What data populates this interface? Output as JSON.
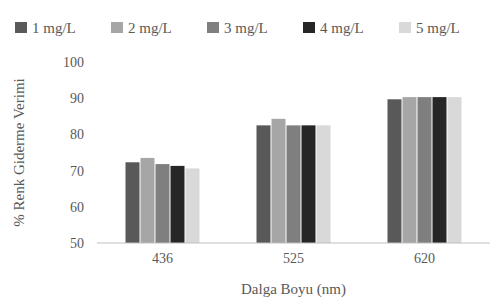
{
  "chart_data": {
    "type": "bar",
    "x_label": "Dalga Boyu (nm)",
    "y_label": "% Renk Giderme Verimi",
    "categories": [
      "436",
      "525",
      "620"
    ],
    "series": [
      {
        "name": "1 mg/L",
        "color": "#595959",
        "values": [
          72.3,
          82.5,
          89.7
        ]
      },
      {
        "name": "2 mg/L",
        "color": "#a6a6a6",
        "values": [
          73.5,
          84.3,
          90.3
        ]
      },
      {
        "name": "3 mg/L",
        "color": "#7f7f7f",
        "values": [
          71.8,
          82.5,
          90.3
        ]
      },
      {
        "name": "4 mg/L",
        "color": "#262626",
        "values": [
          71.3,
          82.5,
          90.3
        ]
      },
      {
        "name": "5 mg/L",
        "color": "#d9d9d9",
        "values": [
          70.6,
          82.5,
          90.3
        ]
      }
    ],
    "ylim": [
      50,
      100
    ],
    "yticks": [
      50,
      60,
      70,
      80,
      90,
      100
    ],
    "grid": false,
    "legend": "top"
  }
}
